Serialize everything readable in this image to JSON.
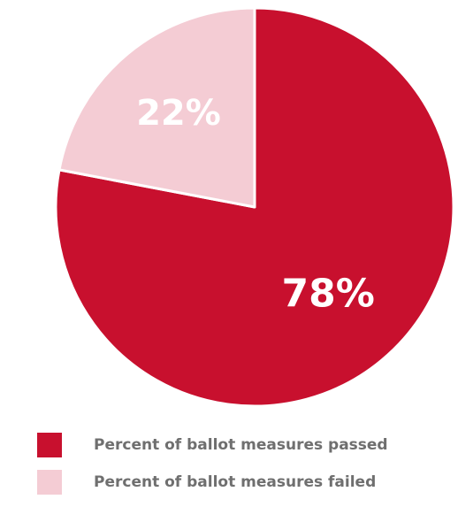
{
  "chart_data": {
    "type": "pie",
    "slices": [
      {
        "label": "Percent of ballot measures passed",
        "value": 78,
        "display": "78%",
        "color": "#c8102e"
      },
      {
        "label": "Percent of ballot measures failed",
        "value": 22,
        "display": "22%",
        "color": "#f4ccd4"
      }
    ],
    "legend_position": "bottom"
  }
}
